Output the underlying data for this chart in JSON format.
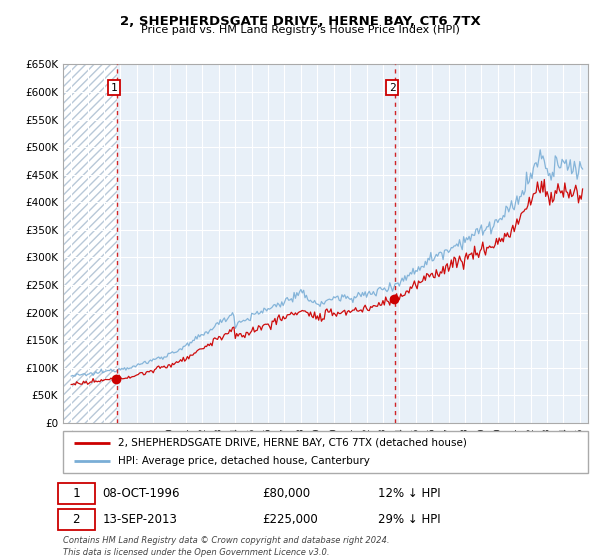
{
  "title": "2, SHEPHERDSGATE DRIVE, HERNE BAY, CT6 7TX",
  "subtitle": "Price paid vs. HM Land Registry's House Price Index (HPI)",
  "legend_label_red": "2, SHEPHERDSGATE DRIVE, HERNE BAY, CT6 7TX (detached house)",
  "legend_label_blue": "HPI: Average price, detached house, Canterbury",
  "annotation1_date": "08-OCT-1996",
  "annotation1_price": "£80,000",
  "annotation1_hpi": "12% ↓ HPI",
  "annotation2_date": "13-SEP-2013",
  "annotation2_price": "£225,000",
  "annotation2_hpi": "29% ↓ HPI",
  "footer": "Contains HM Land Registry data © Crown copyright and database right 2024.\nThis data is licensed under the Open Government Licence v3.0.",
  "sale1_year": 1996.77,
  "sale1_price": 80000,
  "sale2_year": 2013.71,
  "sale2_price": 225000,
  "ylim": [
    0,
    650000
  ],
  "yticks": [
    0,
    50000,
    100000,
    150000,
    200000,
    250000,
    300000,
    350000,
    400000,
    450000,
    500000,
    550000,
    600000,
    650000
  ],
  "color_red": "#cc0000",
  "color_blue": "#7aaed6",
  "color_dashed": "#cc0000",
  "plot_bg": "#e8f0f8",
  "hatch_color": "#c8d8e8"
}
